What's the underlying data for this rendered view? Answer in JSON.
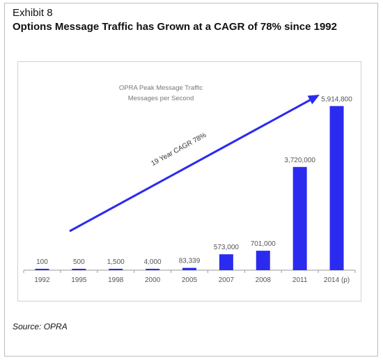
{
  "header": {
    "exhibit": "Exhibit 8",
    "title": "Options Message Traffic has Grown at a CAGR of 78% since 1992"
  },
  "footer": {
    "source": "Source:  OPRA"
  },
  "chart_data": {
    "type": "bar",
    "title": "OPRA Peak Message Traffic",
    "subtitle": "Messages per Second",
    "annotation": "19 Year CAGR 78%",
    "categories": [
      "1992",
      "1995",
      "1998",
      "2000",
      "2005",
      "2007",
      "2008",
      "2011",
      "2014 (p)"
    ],
    "values": [
      100,
      500,
      1500,
      4000,
      83339,
      573000,
      701000,
      3720000,
      5914800
    ],
    "data_labels": [
      "100",
      "500",
      "1,500",
      "4,000",
      "83,339",
      "573,000",
      "701,000",
      "3,720,000",
      "5,914,800"
    ],
    "ylim": [
      0,
      6500000
    ],
    "grid": false,
    "legend": "none",
    "colors": {
      "bar": "#2b2bf0",
      "arrow": "#2b2bf0",
      "text": "#555555"
    }
  }
}
